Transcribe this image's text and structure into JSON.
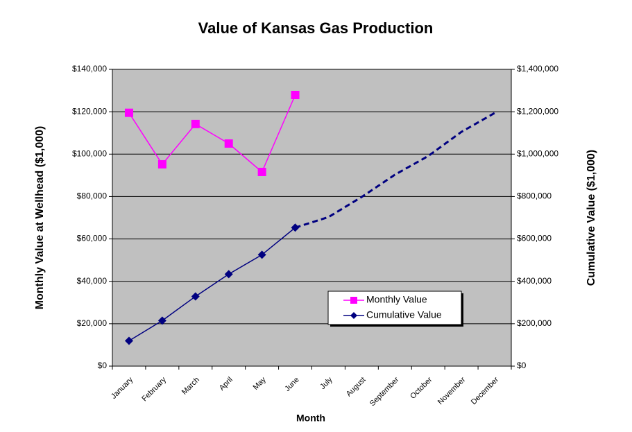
{
  "chart_data": {
    "type": "line",
    "title": "Value of Kansas Gas Production",
    "x_label": "Month",
    "y_label": "Monthly Value at Wellhead ($1,000)",
    "y2_label": "Cumulative Value ($1,000)",
    "categories": [
      "January",
      "February",
      "March",
      "April",
      "May",
      "June",
      "July",
      "August",
      "September",
      "October",
      "November",
      "December"
    ],
    "series": [
      {
        "name": "Monthly Value",
        "color": "#ff00ff",
        "marker": "square",
        "axis": "y",
        "values": [
          119500,
          95200,
          114200,
          105000,
          91600,
          127900,
          null,
          null,
          null,
          null,
          null,
          null
        ]
      },
      {
        "name": "Cumulative Value",
        "color": "#000080",
        "marker": "diamond",
        "axis": "y2",
        "values": [
          119500,
          214700,
          328900,
          433900,
          525500,
          653400,
          null,
          null,
          null,
          null,
          null,
          null
        ]
      },
      {
        "color": "#000080",
        "dashed": true,
        "axis": "y2",
        "values": [
          null,
          null,
          null,
          null,
          null,
          653400,
          703000,
          798000,
          903000,
          991000,
          1105000,
          1194000
        ]
      }
    ],
    "ylim": [
      0,
      140000
    ],
    "yticks": [
      {
        "value": 0,
        "label": "$0"
      },
      {
        "value": 20000,
        "label": "$20,000"
      },
      {
        "value": 40000,
        "label": "$40,000"
      },
      {
        "value": 60000,
        "label": "$60,000"
      },
      {
        "value": 80000,
        "label": "$80,000"
      },
      {
        "value": 100000,
        "label": "$100,000"
      },
      {
        "value": 120000,
        "label": "$120,000"
      },
      {
        "value": 140000,
        "label": "$140,000"
      }
    ],
    "y2lim": [
      0,
      1400000
    ],
    "y2ticks": [
      {
        "value": 0,
        "label": "$0"
      },
      {
        "value": 200000,
        "label": "$200,000"
      },
      {
        "value": 400000,
        "label": "$400,000"
      },
      {
        "value": 600000,
        "label": "$600,000"
      },
      {
        "value": 800000,
        "label": "$800,000"
      },
      {
        "value": 1000000,
        "label": "$1,000,000"
      },
      {
        "value": 1200000,
        "label": "$1,200,000"
      },
      {
        "value": 1400000,
        "label": "$1,400,000"
      }
    ],
    "grid": true,
    "legend": "lower right"
  }
}
